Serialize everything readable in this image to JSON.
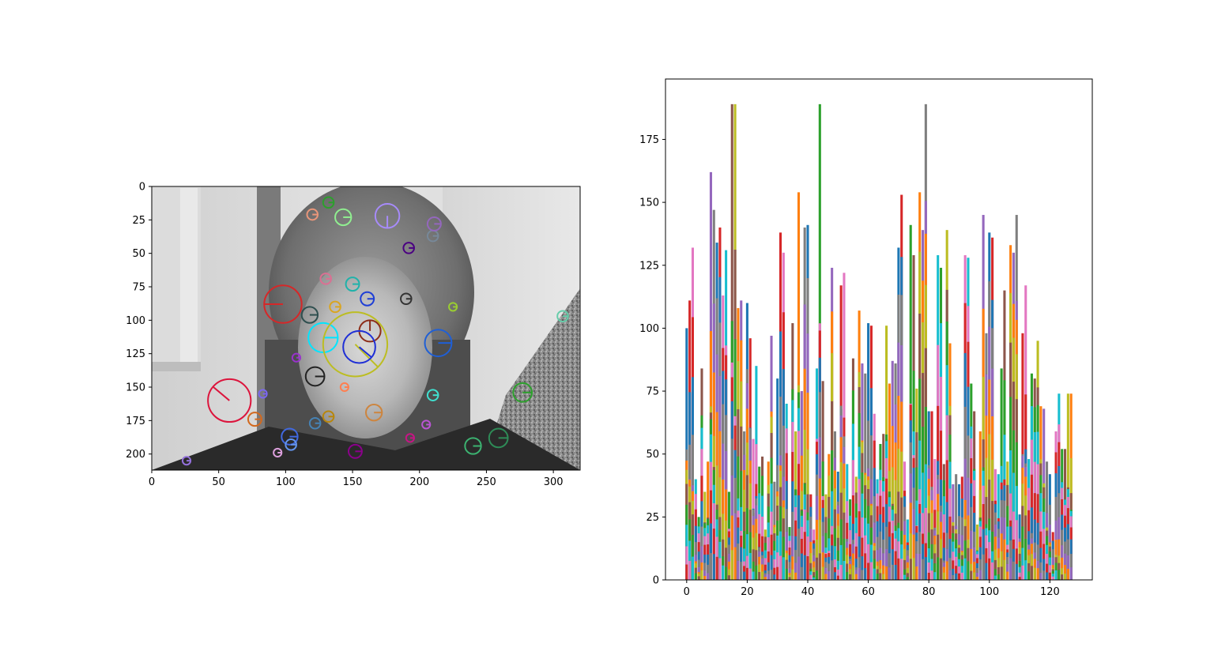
{
  "chart_data": [
    {
      "type": "image",
      "image_description": "",
      "xlabel": "",
      "ylabel": "",
      "xlim": [
        0,
        320
      ],
      "ylim": [
        212,
        0
      ],
      "x_ticks": [
        0,
        50,
        100,
        150,
        200,
        250,
        300
      ],
      "y_ticks": [
        0,
        25,
        50,
        75,
        100,
        125,
        150,
        175,
        200
      ],
      "keypoints": [
        {
          "x": 98,
          "y": 88,
          "r": 14,
          "angle": 180,
          "color": "#d62728"
        },
        {
          "x": 58,
          "y": 160,
          "r": 16,
          "angle": 220,
          "color": "#dc143c"
        },
        {
          "x": 128,
          "y": 113,
          "r": 11,
          "angle": 0,
          "color": "#00e5ff"
        },
        {
          "x": 152,
          "y": 118,
          "r": 24,
          "angle": 45,
          "color": "#bcbd22"
        },
        {
          "x": 163,
          "y": 108,
          "r": 8,
          "angle": 270,
          "color": "#8c2d19"
        },
        {
          "x": 176,
          "y": 22,
          "r": 9,
          "angle": 90,
          "color": "#a78bfa"
        },
        {
          "x": 214,
          "y": 117,
          "r": 10,
          "angle": 0,
          "color": "#1f5fd6"
        },
        {
          "x": 155,
          "y": 120,
          "r": 12,
          "angle": 40,
          "color": "#1f2fd6"
        },
        {
          "x": 118,
          "y": 96,
          "r": 6,
          "angle": 0,
          "color": "#2f4f4f"
        },
        {
          "x": 122,
          "y": 142,
          "r": 7,
          "angle": 0,
          "color": "#222222"
        },
        {
          "x": 143,
          "y": 23,
          "r": 6,
          "angle": 0,
          "color": "#90ee90"
        },
        {
          "x": 161,
          "y": 84,
          "r": 5,
          "angle": 0,
          "color": "#1f3fd6"
        },
        {
          "x": 150,
          "y": 73,
          "r": 5,
          "angle": 0,
          "color": "#20b2aa"
        },
        {
          "x": 277,
          "y": 154,
          "r": 7,
          "angle": 0,
          "color": "#2ca02c"
        },
        {
          "x": 259,
          "y": 188,
          "r": 7,
          "angle": 0,
          "color": "#2e8b57"
        },
        {
          "x": 240,
          "y": 194,
          "r": 6,
          "angle": 0,
          "color": "#3cb371"
        },
        {
          "x": 103,
          "y": 187,
          "r": 6,
          "angle": 0,
          "color": "#4169e1"
        },
        {
          "x": 166,
          "y": 169,
          "r": 6,
          "angle": 0,
          "color": "#cd853f"
        },
        {
          "x": 152,
          "y": 198,
          "r": 5,
          "angle": 0,
          "color": "#8b008b"
        },
        {
          "x": 77,
          "y": 174,
          "r": 5,
          "angle": 0,
          "color": "#d2691e"
        },
        {
          "x": 122,
          "y": 177,
          "r": 4,
          "angle": 0,
          "color": "#4682b4"
        },
        {
          "x": 132,
          "y": 172,
          "r": 4,
          "angle": 0,
          "color": "#b8860b"
        },
        {
          "x": 132,
          "y": 12,
          "r": 4,
          "angle": 0,
          "color": "#2ca02c"
        },
        {
          "x": 120,
          "y": 21,
          "r": 4,
          "angle": 0,
          "color": "#e9967a"
        },
        {
          "x": 210,
          "y": 37,
          "r": 4,
          "angle": 0,
          "color": "#778899"
        },
        {
          "x": 211,
          "y": 28,
          "r": 5,
          "angle": 0,
          "color": "#9467bd"
        },
        {
          "x": 192,
          "y": 46,
          "r": 4,
          "angle": 0,
          "color": "#4b0082"
        },
        {
          "x": 130,
          "y": 69,
          "r": 4,
          "angle": 0,
          "color": "#db7093"
        },
        {
          "x": 137,
          "y": 90,
          "r": 4,
          "angle": 0,
          "color": "#daa520"
        },
        {
          "x": 190,
          "y": 84,
          "r": 4,
          "angle": 0,
          "color": "#333333"
        },
        {
          "x": 210,
          "y": 156,
          "r": 4,
          "angle": 0,
          "color": "#40e0d0"
        },
        {
          "x": 205,
          "y": 178,
          "r": 3,
          "angle": 0,
          "color": "#ba55d3"
        },
        {
          "x": 193,
          "y": 188,
          "r": 3,
          "angle": 0,
          "color": "#c71585"
        },
        {
          "x": 94,
          "y": 199,
          "r": 3,
          "angle": 0,
          "color": "#dda0dd"
        },
        {
          "x": 83,
          "y": 155,
          "r": 3,
          "angle": 0,
          "color": "#7b68ee"
        },
        {
          "x": 307,
          "y": 97,
          "r": 4,
          "angle": 0,
          "color": "#66cdaa"
        },
        {
          "x": 225,
          "y": 90,
          "r": 3,
          "angle": 0,
          "color": "#9acd32"
        },
        {
          "x": 104,
          "y": 193,
          "r": 4,
          "angle": 0,
          "color": "#6495ed"
        },
        {
          "x": 108,
          "y": 128,
          "r": 3,
          "angle": 0,
          "color": "#9932cc"
        },
        {
          "x": 144,
          "y": 150,
          "r": 3,
          "angle": 0,
          "color": "#ff7f50"
        },
        {
          "x": 26,
          "y": 205,
          "r": 3,
          "angle": 0,
          "color": "#9370db"
        }
      ]
    },
    {
      "type": "bar",
      "title": "",
      "xlabel": "",
      "ylabel": "",
      "xlim": [
        -7,
        134
      ],
      "ylim": [
        0,
        199
      ],
      "x_ticks": [
        0,
        20,
        40,
        60,
        80,
        100,
        120
      ],
      "y_ticks": [
        0,
        25,
        50,
        75,
        100,
        125,
        150,
        175
      ],
      "palette": [
        "#1f77b4",
        "#ff7f0e",
        "#2ca02c",
        "#d62728",
        "#9467bd",
        "#8c564b",
        "#e377c2",
        "#7f7f7f",
        "#bcbd22",
        "#17becf"
      ],
      "grid": false,
      "legend": "none",
      "bins": 128,
      "max_values": [
        100,
        111,
        132,
        40,
        25,
        84,
        35,
        47,
        162,
        147,
        134,
        140,
        113,
        131,
        35,
        189,
        189,
        108,
        111,
        59,
        110,
        96,
        56,
        85,
        45,
        49,
        20,
        47,
        97,
        39,
        80,
        138,
        130,
        70,
        21,
        102,
        59,
        154,
        75,
        140,
        141,
        34,
        20,
        84,
        189,
        79,
        34,
        50,
        124,
        59,
        43,
        117,
        122,
        46,
        32,
        88,
        41,
        107,
        86,
        82,
        102,
        101,
        66,
        40,
        54,
        58,
        101,
        78,
        87,
        86,
        132,
        153,
        47,
        24,
        141,
        129,
        76,
        154,
        139,
        189,
        67,
        67,
        48,
        129,
        124,
        46,
        139,
        94,
        38,
        42,
        38,
        41,
        129,
        128,
        78,
        67,
        22,
        59,
        145,
        98,
        138,
        136,
        44,
        42,
        84,
        115,
        47,
        133,
        130,
        145,
        26,
        98,
        117,
        48,
        82,
        80,
        95,
        69,
        68,
        47,
        42,
        19,
        59,
        74,
        52,
        52,
        74,
        74
      ]
    }
  ]
}
